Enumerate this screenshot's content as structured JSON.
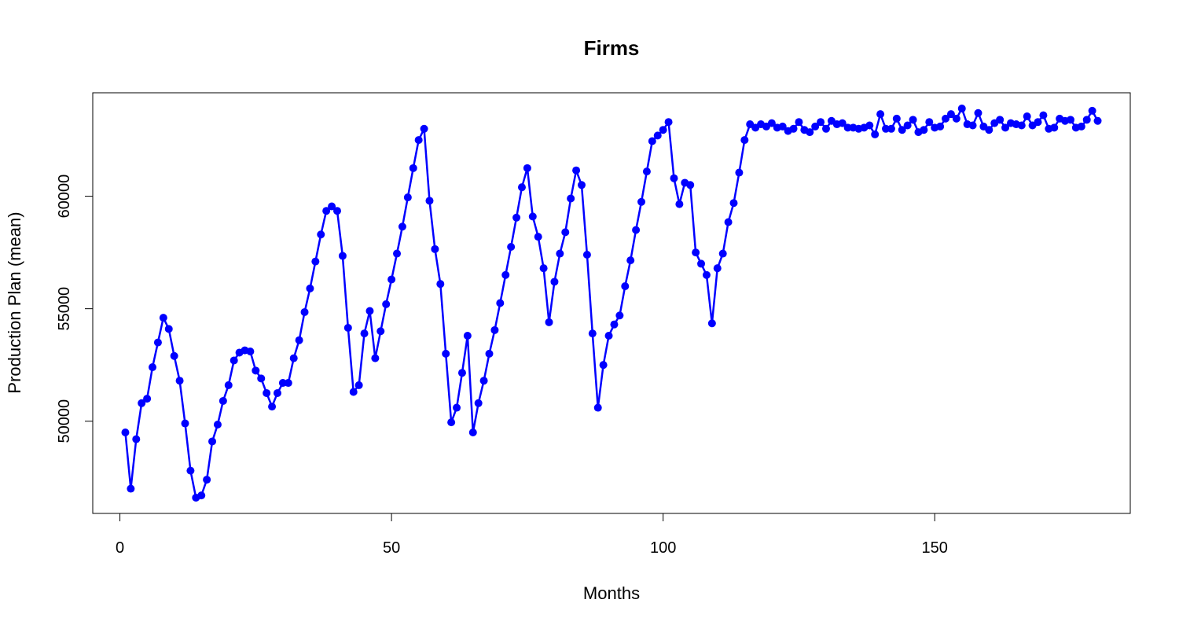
{
  "chart_data": {
    "type": "line",
    "title": "Firms",
    "xlabel": "Months",
    "ylabel": "Production Plan (mean)",
    "xlim": [
      -5,
      186
    ],
    "ylim": [
      45900,
      64600
    ],
    "x_ticks": [
      0,
      50,
      100,
      150
    ],
    "x_tick_labels": [
      "0",
      "50",
      "100",
      "150"
    ],
    "y_ticks": [
      50000,
      55000,
      60000
    ],
    "y_tick_labels": [
      "50000",
      "55000",
      "60000"
    ],
    "grid": false,
    "series": [
      {
        "color": "#0000ff",
        "marker": "filled-circle",
        "x": [
          1,
          2,
          3,
          4,
          5,
          6,
          7,
          8,
          9,
          10,
          11,
          12,
          13,
          14,
          15,
          16,
          17,
          18,
          19,
          20,
          21,
          22,
          23,
          24,
          25,
          26,
          27,
          28,
          29,
          30,
          31,
          32,
          33,
          34,
          35,
          36,
          37,
          38,
          39,
          40,
          41,
          42,
          43,
          44,
          45,
          46,
          47,
          48,
          49,
          50,
          51,
          52,
          53,
          54,
          55,
          56,
          57,
          58,
          59,
          60,
          61,
          62,
          63,
          64,
          65,
          66,
          67,
          68,
          69,
          70,
          71,
          72,
          73,
          74,
          75,
          76,
          77,
          78,
          79,
          80,
          81,
          82,
          83,
          84,
          85,
          86,
          87,
          88,
          89,
          90,
          91,
          92,
          93,
          94,
          95,
          96,
          97,
          98,
          99,
          100,
          101,
          102,
          103,
          104,
          105,
          106,
          107,
          108,
          109,
          110,
          111,
          112,
          113,
          114,
          115,
          116,
          117,
          118,
          119,
          120,
          121,
          122,
          123,
          124,
          125,
          126,
          127,
          128,
          129,
          130,
          131,
          132,
          133,
          134,
          135,
          136,
          137,
          138,
          139,
          140,
          141,
          142,
          143,
          144,
          145,
          146,
          147,
          148,
          149,
          150,
          151,
          152,
          153,
          154,
          155,
          156,
          157,
          158,
          159,
          160,
          161,
          162,
          163,
          164,
          165,
          166,
          167,
          168,
          169,
          170,
          171,
          172,
          173,
          174,
          175,
          176,
          177,
          178,
          179,
          180
        ],
        "y": [
          49500,
          47000,
          49200,
          50800,
          51000,
          52400,
          53500,
          54600,
          54100,
          52900,
          51800,
          49900,
          47800,
          46600,
          46700,
          47400,
          49100,
          49850,
          50900,
          51600,
          52700,
          53050,
          53150,
          53100,
          52250,
          51900,
          51250,
          50650,
          51250,
          51700,
          51700,
          52800,
          53600,
          54850,
          55900,
          57100,
          58300,
          59350,
          59550,
          59350,
          57350,
          54150,
          51300,
          51600,
          53900,
          54900,
          52800,
          54000,
          55200,
          56300,
          57450,
          58650,
          59950,
          61250,
          62500,
          63000,
          59800,
          57650,
          56100,
          53000,
          49950,
          50600,
          52150,
          53800,
          49500,
          50800,
          51800,
          53000,
          54050,
          55250,
          56500,
          57750,
          59050,
          60400,
          61250,
          59100,
          58200,
          56800,
          54400,
          56200,
          57450,
          58400,
          59900,
          61150,
          60500,
          57400,
          53900,
          50600,
          52500,
          53800,
          54300,
          54700,
          56000,
          57150,
          58500,
          59750,
          61100,
          62450,
          62700,
          62950,
          63300,
          60800,
          59650,
          60600,
          60500,
          57500,
          57000,
          56500,
          54350,
          56800,
          57450,
          58850,
          59700,
          61050,
          62500,
          63200,
          63050,
          63200,
          63100,
          63250,
          63050,
          63100,
          62900,
          63000,
          63300,
          62950,
          62850,
          63100,
          63300,
          63000,
          63350,
          63200,
          63250,
          63050,
          63050,
          63000,
          63050,
          63150,
          62750,
          63650,
          63000,
          63000,
          63450,
          62950,
          63150,
          63400,
          62850,
          62950,
          63300,
          63050,
          63100,
          63450,
          63650,
          63450,
          63900,
          63200,
          63150,
          63700,
          63100,
          62950,
          63250,
          63400,
          63050,
          63250,
          63200,
          63150,
          63550,
          63150,
          63300,
          63600,
          63000,
          63050,
          63450,
          63350,
          63400,
          63050,
          63100,
          63400,
          63800,
          63350
        ]
      }
    ]
  }
}
